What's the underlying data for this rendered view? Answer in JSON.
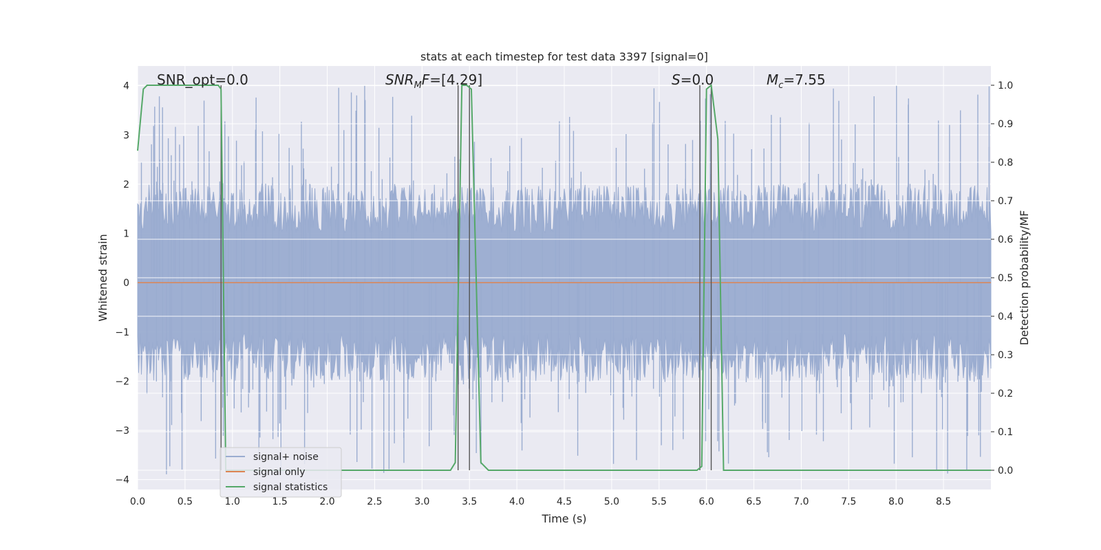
{
  "chart_data": {
    "type": "line",
    "title": "stats at each timestep for test data 3397 [signal=0]",
    "xlabel": "Time (s)",
    "ylabel_left": "Whitened strain",
    "ylabel_right": "Detection probability/MF",
    "xlim": [
      0.0,
      9.0
    ],
    "ylim_left": [
      -4.2,
      4.4
    ],
    "ylim_right": [
      -0.05,
      1.05
    ],
    "x_ticks": [
      "0.0",
      "0.5",
      "1.0",
      "1.5",
      "2.0",
      "2.5",
      "3.0",
      "3.5",
      "4.0",
      "4.5",
      "5.0",
      "5.5",
      "6.0",
      "6.5",
      "7.0",
      "7.5",
      "8.0",
      "8.5"
    ],
    "y_left_ticks": [
      "4",
      "3",
      "2",
      "1",
      "0",
      "−1",
      "−2",
      "−3",
      "−4"
    ],
    "y_right_ticks": [
      "1.0",
      "0.9",
      "0.8",
      "0.7",
      "0.6",
      "0.5",
      "0.4",
      "0.3",
      "0.2",
      "0.1",
      "0.0"
    ],
    "grid": true,
    "annotations": {
      "snr_opt": "SNR_opt=0.0",
      "snr_mf": "=[4.29]",
      "s": "=0.0",
      "mc": "=7.55"
    },
    "legend": {
      "placement": "lower-left",
      "entries": [
        "signal+ noise",
        "signal only",
        "signal statistics"
      ]
    },
    "colors": {
      "noise": "#9aacd0",
      "signal": "#dd8452",
      "stats": "#55a868",
      "markers": "#555555",
      "background": "#eaeaf2"
    },
    "series": [
      {
        "name": "signal statistics",
        "axis": "right",
        "x": [
          0.0,
          0.06,
          0.1,
          0.85,
          0.88,
          0.93,
          1.0,
          3.3,
          3.35,
          3.42,
          3.47,
          3.52,
          3.62,
          3.7,
          4.5,
          5.9,
          5.95,
          6.0,
          6.05,
          6.12,
          6.18,
          6.3,
          9.0
        ],
        "y": [
          0.83,
          0.99,
          1.0,
          1.0,
          0.99,
          0.0,
          0.0,
          0.0,
          0.02,
          1.0,
          1.0,
          0.99,
          0.02,
          0.0,
          0.0,
          0.0,
          0.01,
          0.99,
          1.0,
          0.86,
          0.0,
          0.0,
          0.0
        ]
      },
      {
        "name": "signal only",
        "axis": "left",
        "x": [
          0.0,
          9.0
        ],
        "y": [
          0.0,
          0.0
        ]
      }
    ],
    "vertical_markers": [
      0.88,
      3.38,
      3.5,
      5.93,
      6.05
    ],
    "noise_band": {
      "envelope_min": -2.0,
      "envelope_max": 2.0,
      "peak_min": -3.9,
      "peak_max": 4.0
    }
  }
}
